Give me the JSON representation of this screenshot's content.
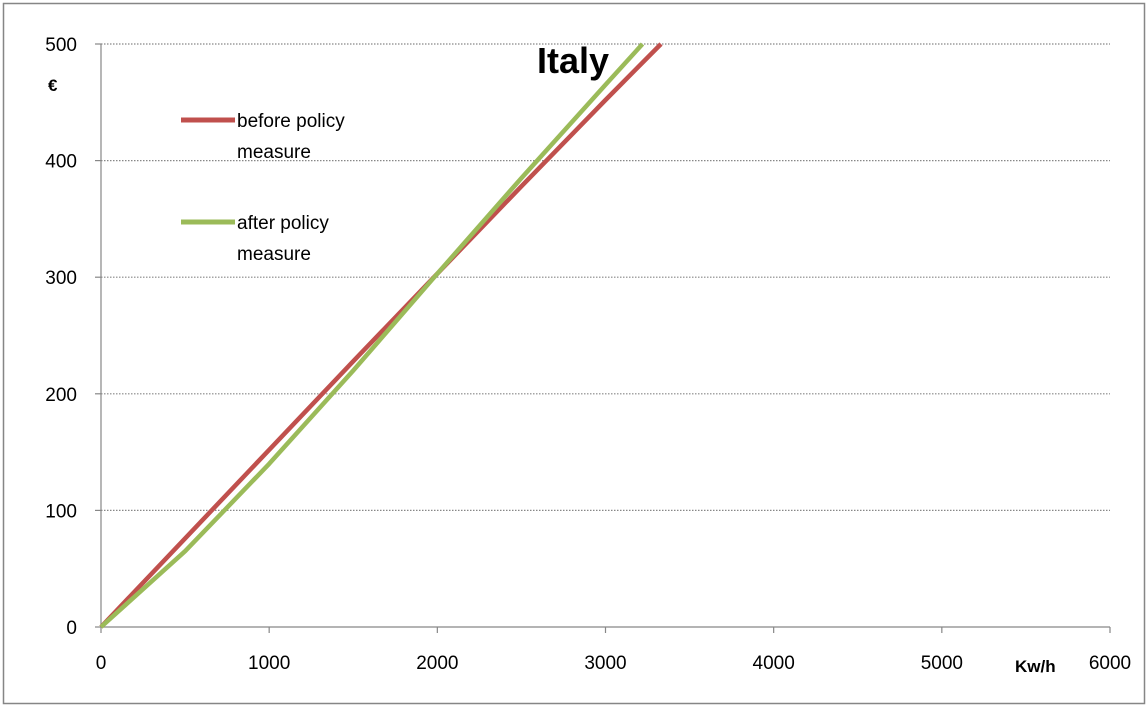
{
  "chart_data": {
    "type": "line",
    "title": "Italy",
    "xlabel": "Kw/h",
    "ylabel": "€",
    "xlim": [
      0,
      6000
    ],
    "ylim": [
      0,
      500
    ],
    "x_ticks": [
      "0",
      "1000",
      "2000",
      "3000",
      "4000",
      "5000",
      "6000"
    ],
    "y_ticks": [
      "0",
      "100",
      "200",
      "300",
      "400",
      "500"
    ],
    "grid": "horizontal dotted",
    "legend_position": "top-left",
    "series": [
      {
        "name": "before policy measure",
        "color": "#c0504d",
        "points": [
          [
            0,
            0
          ],
          [
            500,
            76
          ],
          [
            1000,
            152
          ],
          [
            1500,
            228
          ],
          [
            2000,
            303
          ],
          [
            2500,
            378
          ],
          [
            3000,
            452
          ],
          [
            3330,
            500
          ]
        ]
      },
      {
        "name": "after policy measure",
        "color": "#9bbb59",
        "points": [
          [
            0,
            0
          ],
          [
            500,
            65
          ],
          [
            1000,
            140
          ],
          [
            1500,
            220
          ],
          [
            2000,
            303
          ],
          [
            2500,
            385
          ],
          [
            3000,
            465
          ],
          [
            3220,
            500
          ]
        ]
      }
    ]
  }
}
